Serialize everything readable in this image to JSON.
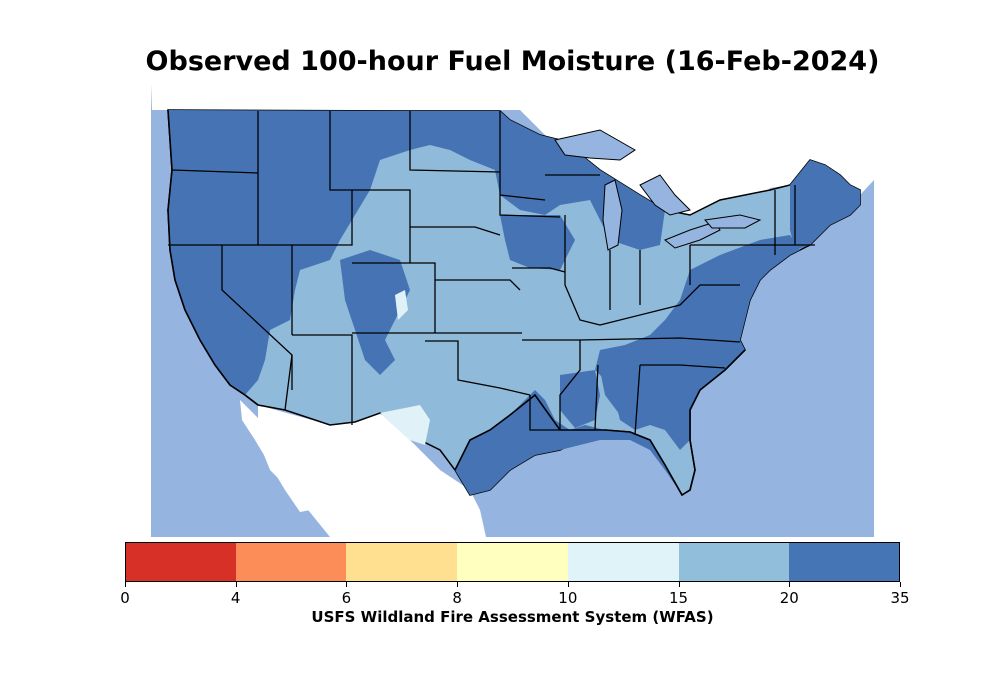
{
  "title": "Observed 100-hour Fuel Moisture (16-Feb-2024)",
  "source": "USFS Wildland Fire Assessment System (WFAS)",
  "colors": {
    "water": "#96b4e0",
    "land_outside": "#ffffff",
    "dark_blue": "#4673b4",
    "mid_blue": "#8fbad9",
    "light_blue": "#e0f1f8"
  },
  "legend": {
    "bins": [
      {
        "from": 0,
        "to": 4,
        "color": "#d73027"
      },
      {
        "from": 4,
        "to": 6,
        "color": "#fc8d59"
      },
      {
        "from": 6,
        "to": 8,
        "color": "#fee090"
      },
      {
        "from": 8,
        "to": 10,
        "color": "#ffffbf"
      },
      {
        "from": 10,
        "to": 15,
        "color": "#e0f3f8"
      },
      {
        "from": 15,
        "to": 20,
        "color": "#91bfdb"
      },
      {
        "from": 20,
        "to": 35,
        "color": "#4575b4"
      }
    ],
    "ticks": [
      "0",
      "4",
      "6",
      "8",
      "10",
      "15",
      "20",
      "35"
    ]
  }
}
